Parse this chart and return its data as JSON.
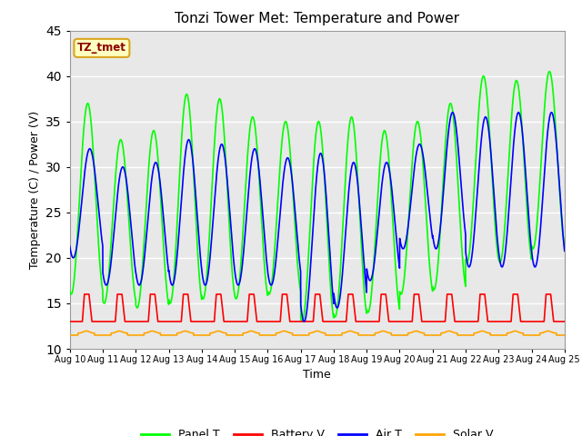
{
  "title": "Tonzi Tower Met: Temperature and Power",
  "xlabel": "Time",
  "ylabel": "Temperature (C) / Power (V)",
  "ylim": [
    10,
    45
  ],
  "yticks": [
    10,
    15,
    20,
    25,
    30,
    35,
    40,
    45
  ],
  "start_day": 10,
  "end_day": 25,
  "n_days": 15,
  "annotation_text": "TZ_tmet",
  "annotation_color": "#8B0000",
  "annotation_bg": "#FFFFC0",
  "annotation_border": "#DAA520",
  "colors": {
    "panel_t": "#00FF00",
    "battery_v": "#FF0000",
    "air_t": "#0000FF",
    "solar_v": "#FFA500"
  },
  "legend_labels": [
    "Panel T",
    "Battery V",
    "Air T",
    "Solar V"
  ],
  "background_color": "#E8E8E8",
  "figure_bg": "#FFFFFF",
  "grid_color": "#FFFFFF",
  "panel_t_day_max": [
    37,
    33,
    34,
    38,
    37.5,
    35.5,
    35,
    35,
    35.5,
    34,
    35,
    37,
    40,
    39.5,
    40.5
  ],
  "panel_t_day_min": [
    16,
    15,
    14.5,
    15,
    15.5,
    15.5,
    16,
    13,
    13.5,
    14,
    16,
    16.5,
    19.5,
    19.5,
    21
  ],
  "air_t_day_max": [
    32,
    30,
    30.5,
    33,
    32.5,
    32,
    31,
    31.5,
    30.5,
    30.5,
    32.5,
    36,
    35.5,
    36,
    36
  ],
  "air_t_day_min": [
    20,
    17,
    17,
    17,
    17,
    17,
    17,
    13,
    14.5,
    17.5,
    21,
    21,
    19,
    19,
    19
  ],
  "battery_v_base": 13.0,
  "battery_v_spike": 16.0,
  "solar_v_base": 11.5,
  "solar_v_bump": 12.2,
  "pts_per_day": 288
}
